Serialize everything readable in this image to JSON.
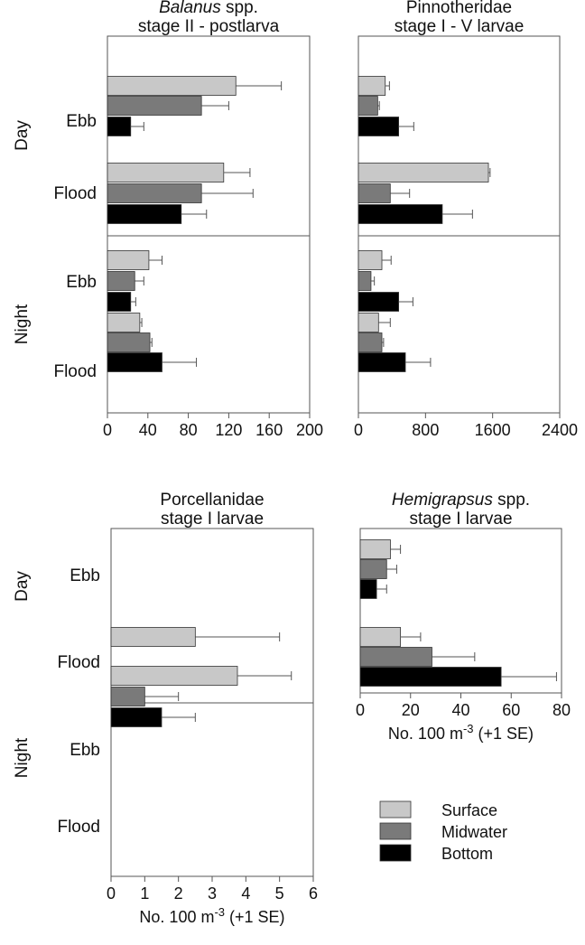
{
  "units_label": "No. 100 m",
  "units_exponent": "-3",
  "units_suffix": " (+1 SE)",
  "legend": [
    {
      "name": "Surface",
      "color": "#c8c8c8"
    },
    {
      "name": "Midwater",
      "color": "#7a7a7a"
    },
    {
      "name": "Bottom",
      "color": "#000000"
    }
  ],
  "row_groups": [
    "Day",
    "Night"
  ],
  "tides": [
    "Ebb",
    "Flood"
  ],
  "chart_data": [
    {
      "type": "bar",
      "orientation": "horizontal",
      "title_italic": "Balanus",
      "title_rest": " spp.",
      "subtitle": "stage II - postlarva",
      "xlim": [
        0,
        200
      ],
      "xticks": [
        0,
        40,
        80,
        120,
        160,
        200
      ],
      "xlabel": "",
      "series": [
        {
          "name": "Surface",
          "values": [
            127,
            115,
            41,
            32
          ],
          "errors": [
            45,
            26,
            13,
            2
          ]
        },
        {
          "name": "Midwater",
          "values": [
            93,
            93,
            27,
            42
          ],
          "errors": [
            27,
            51,
            9,
            2
          ]
        },
        {
          "name": "Bottom",
          "values": [
            23,
            73,
            23,
            54
          ],
          "errors": [
            13,
            25,
            5,
            34
          ]
        }
      ]
    },
    {
      "type": "bar",
      "orientation": "horizontal",
      "title_italic": "",
      "title_rest": "Pinnotheridae",
      "subtitle": "stage I - V larvae",
      "xlim": [
        0,
        2400
      ],
      "xticks": [
        0,
        800,
        1600,
        2400
      ],
      "xlabel": "",
      "series": [
        {
          "name": "Surface",
          "values": [
            320,
            1550,
            280,
            240
          ],
          "errors": [
            50,
            20,
            110,
            140
          ]
        },
        {
          "name": "Midwater",
          "values": [
            230,
            380,
            150,
            280
          ],
          "errors": [
            20,
            230,
            40,
            20
          ]
        },
        {
          "name": "Bottom",
          "values": [
            480,
            1000,
            480,
            560
          ],
          "errors": [
            180,
            360,
            170,
            300
          ]
        }
      ]
    },
    {
      "type": "bar",
      "orientation": "horizontal",
      "title_italic": "",
      "title_rest": "Porcellanidae",
      "subtitle": "stage I larvae",
      "xlim": [
        0,
        6
      ],
      "xticks": [
        0,
        1,
        2,
        3,
        4,
        5,
        6
      ],
      "xlabel": "No. 100 m-3 (+1 SE)",
      "series": [
        {
          "name": "Surface",
          "values": [
            0,
            2.5,
            3.75,
            0
          ],
          "errors": [
            0,
            2.5,
            1.6,
            0
          ]
        },
        {
          "name": "Midwater",
          "values": [
            0,
            0,
            1.0,
            0
          ],
          "errors": [
            0,
            0,
            1.0,
            0
          ]
        },
        {
          "name": "Bottom",
          "values": [
            0,
            0,
            1.5,
            0
          ],
          "errors": [
            0,
            0,
            1.0,
            0
          ]
        }
      ]
    },
    {
      "type": "bar",
      "orientation": "horizontal",
      "title_italic": "Hemigrapsus",
      "title_rest": " spp.",
      "subtitle": "stage I larvae",
      "xlim": [
        0,
        80
      ],
      "xticks": [
        0,
        20,
        40,
        60,
        80
      ],
      "xlabel": "No. 100 m-3 (+1 SE)",
      "series": [
        {
          "name": "Surface",
          "values": [
            12,
            16
          ],
          "errors": [
            4,
            8
          ]
        },
        {
          "name": "Midwater",
          "values": [
            10.5,
            28.5
          ],
          "errors": [
            4,
            17
          ]
        },
        {
          "name": "Bottom",
          "values": [
            6.5,
            56
          ],
          "errors": [
            4,
            22
          ]
        }
      ]
    }
  ]
}
